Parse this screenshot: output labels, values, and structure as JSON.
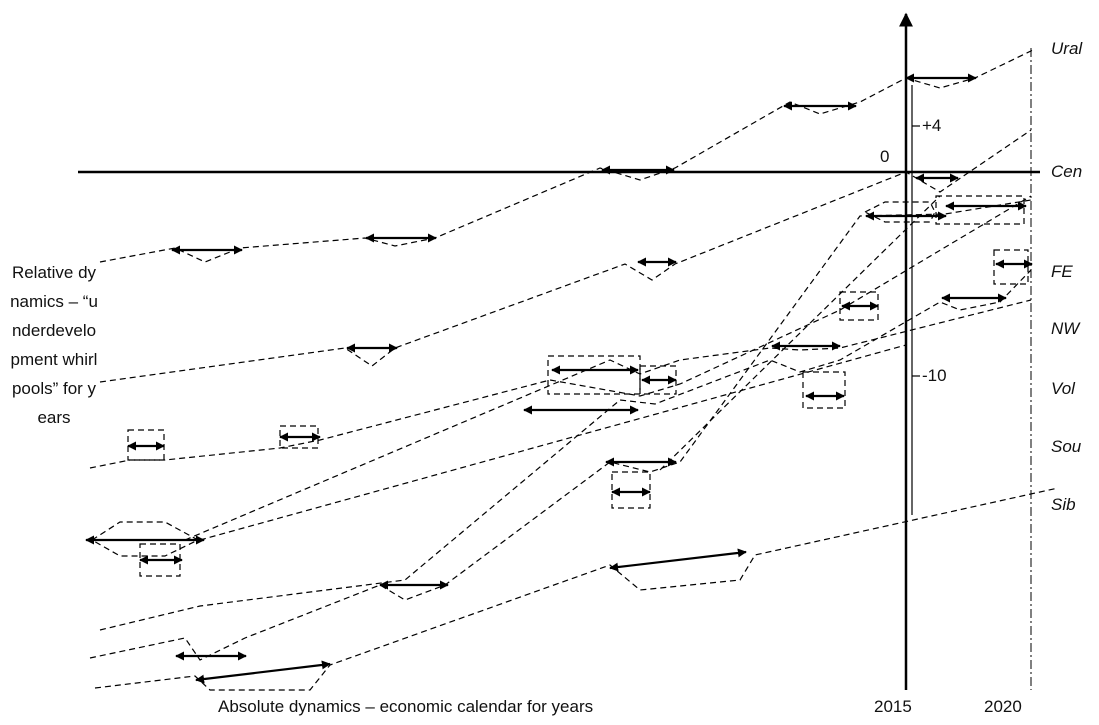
{
  "axes": {
    "x_label": "Absolute dynamics – economic calendar for years",
    "y_label": "Relative dynamics – “underdevelopment whirlpools” for years",
    "origin_label": "0",
    "year_ticks": [
      "2015",
      "2020"
    ],
    "plus_marker": "+4",
    "minus_marker": "-10"
  },
  "regions": [
    {
      "key": "ural",
      "label": "Ural"
    },
    {
      "key": "cen",
      "label": "Cen"
    },
    {
      "key": "fe",
      "label": "FE"
    },
    {
      "key": "nw",
      "label": "NW"
    },
    {
      "key": "vol",
      "label": "Vol"
    },
    {
      "key": "sou",
      "label": "Sou"
    },
    {
      "key": "sib",
      "label": "Sib"
    }
  ]
}
